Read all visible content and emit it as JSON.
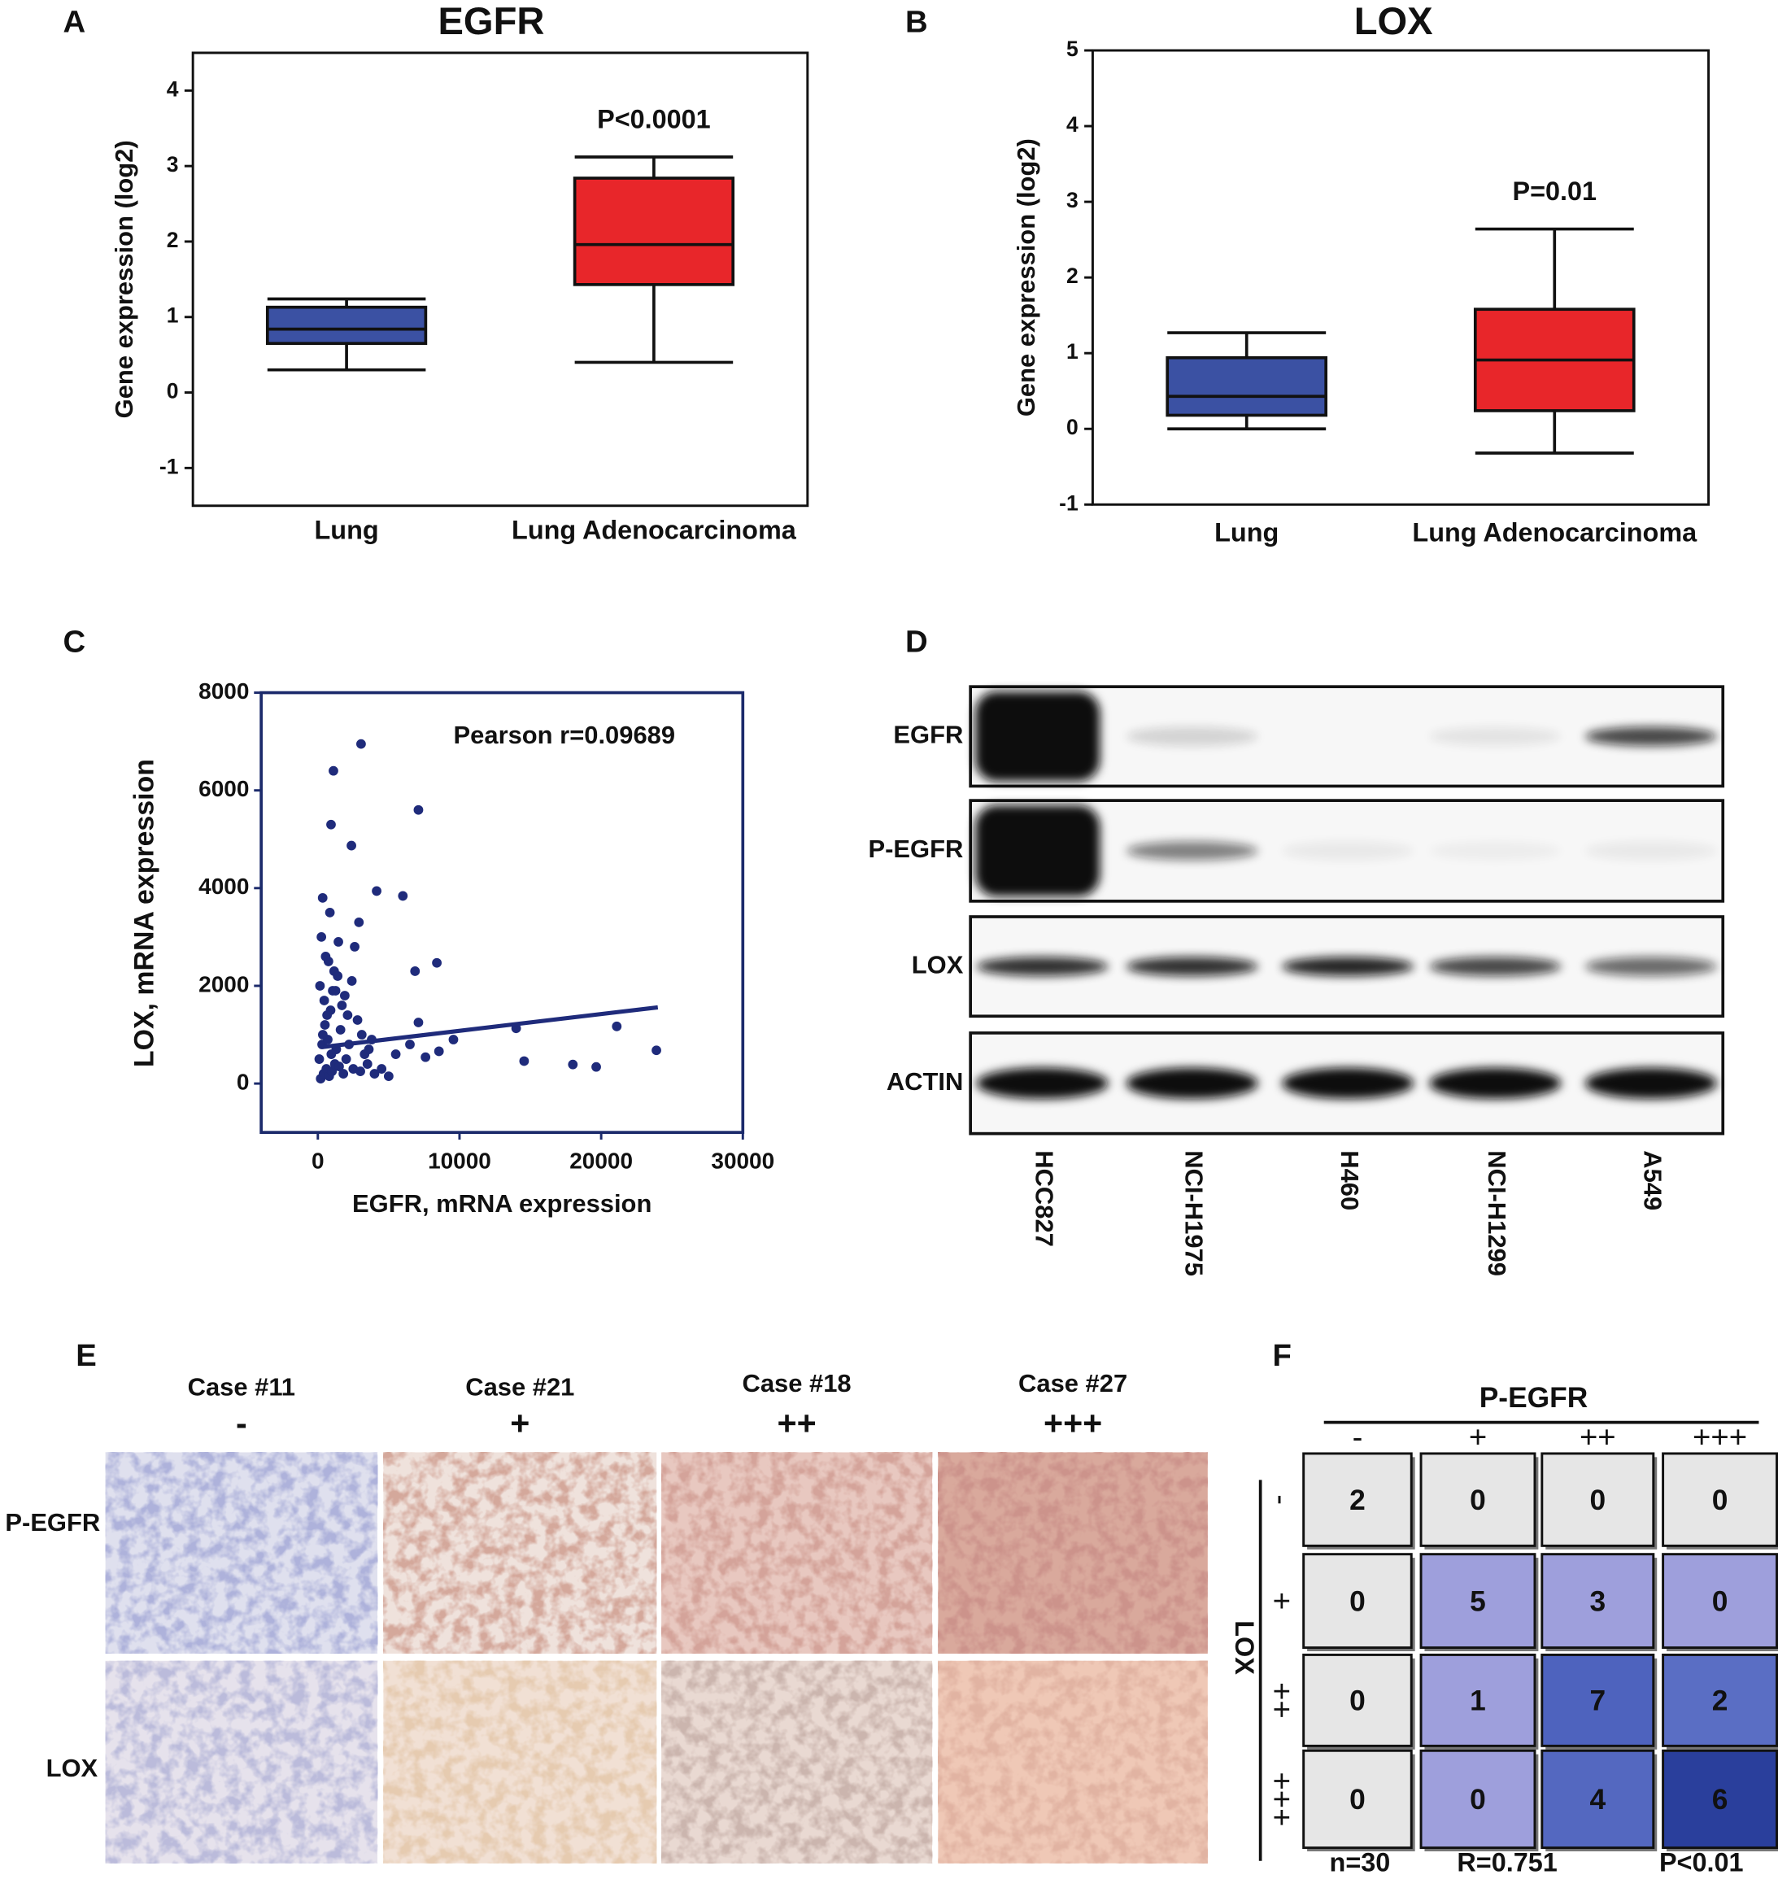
{
  "panels": [
    "A",
    "B",
    "C",
    "D",
    "E",
    "F"
  ],
  "chart_data": [
    {
      "type": "box",
      "title": "EGFR",
      "ylabel": "Gene expression (log2)",
      "categories": [
        "Lung",
        "Lung Adenocarcinoma"
      ],
      "min": [
        0.3,
        0.4
      ],
      "q1": [
        0.65,
        1.43
      ],
      "median": [
        0.84,
        1.96
      ],
      "q3": [
        1.13,
        2.84
      ],
      "max": [
        1.24,
        3.12
      ],
      "colors": [
        "#3b51a3",
        "#e8262a"
      ],
      "ylim": [
        -1.5,
        4.5
      ],
      "yticks": [
        -1,
        0,
        1,
        2,
        3,
        4
      ],
      "annotation": "P<0.0001"
    },
    {
      "type": "box",
      "title": "LOX",
      "ylabel": "Gene expression (log2)",
      "categories": [
        "Lung",
        "Lung Adenocarcinoma"
      ],
      "min": [
        0,
        -0.32
      ],
      "q1": [
        0.18,
        0.24
      ],
      "median": [
        0.43,
        0.91
      ],
      "q3": [
        0.94,
        1.58
      ],
      "max": [
        1.27,
        2.64
      ],
      "colors": [
        "#3b51a3",
        "#e8262a"
      ],
      "ylim": [
        -1,
        5
      ],
      "yticks": [
        -1,
        0,
        1,
        2,
        3,
        4,
        5
      ],
      "annotation": "P=0.01"
    },
    {
      "type": "scatter",
      "xlabel": "EGFR, mRNA expression",
      "ylabel": "LOX, mRNA expression",
      "annotation": "Pearson r=0.09689",
      "color": "#1f2b7b",
      "x": [
        3050,
        1100,
        7100,
        930,
        2370,
        4150,
        6000,
        340,
        6860,
        8400,
        14000,
        14560,
        18000,
        19650,
        21100,
        23900,
        7100,
        9570,
        8550,
        7600,
        200,
        400,
        600,
        800,
        1000,
        1200,
        1500,
        1800,
        2000,
        2500,
        3000,
        3500,
        4000,
        4500,
        5000,
        300,
        500,
        700,
        900,
        1300,
        1600,
        2200,
        2800,
        3300,
        3800,
        150,
        450,
        750,
        1050,
        1400,
        1700,
        2100,
        2600,
        3100,
        3600,
        250,
        550,
        850,
        1150,
        1450,
        1900,
        2400,
        2900,
        5500,
        6500,
        100,
        350,
        650,
        950,
        1250
      ],
      "y": [
        6950,
        6400,
        5600,
        5300,
        4870,
        3940,
        3840,
        3800,
        2300,
        2470,
        1130,
        460,
        390,
        340,
        1170,
        680,
        1250,
        900,
        660,
        540,
        100,
        200,
        300,
        150,
        250,
        400,
        350,
        200,
        500,
        300,
        250,
        400,
        200,
        300,
        150,
        800,
        1200,
        900,
        1500,
        700,
        1100,
        800,
        1300,
        600,
        900,
        2000,
        1700,
        2500,
        1900,
        2200,
        1600,
        1400,
        2800,
        1000,
        700,
        3000,
        2600,
        3500,
        2300,
        2900,
        1800,
        2100,
        3300,
        600,
        800,
        500,
        1000,
        1400,
        600,
        1900
      ],
      "fit": {
        "x": [
          400,
          24000
        ],
        "y": [
          750,
          1560
        ]
      },
      "xlim": [
        -4000,
        30000
      ],
      "ylim": [
        -1000,
        8000
      ],
      "xticks": [
        0,
        10000,
        20000,
        30000
      ],
      "yticks": [
        0,
        2000,
        4000,
        6000,
        8000
      ]
    },
    {
      "type": "heatmap",
      "xlabel": "P-EGFR",
      "ylabel": "LOX",
      "x_categories": [
        "-",
        "+",
        "++",
        "+++"
      ],
      "y_categories": [
        "-",
        "+",
        "++",
        "+++"
      ],
      "values": [
        [
          2,
          0,
          0,
          0
        ],
        [
          0,
          5,
          3,
          0
        ],
        [
          0,
          1,
          7,
          2
        ],
        [
          0,
          0,
          4,
          6
        ]
      ],
      "colors": [
        [
          "#e6e6e6",
          "#e6e6e6",
          "#e6e6e6",
          "#e6e6e6"
        ],
        [
          "#e6e6e6",
          "#9e9fdc",
          "#9e9fdc",
          "#9e9fdc"
        ],
        [
          "#e6e6e6",
          "#9e9fdc",
          "#4e63be",
          "#5a6ec4"
        ],
        [
          "#e6e6e6",
          "#9e9fdc",
          "#5468c0",
          "#2a3f9c"
        ]
      ],
      "annotations": [
        "n=30",
        "R=0.751",
        "P<0.01"
      ]
    }
  ],
  "blot": {
    "rows": [
      "EGFR",
      "P-EGFR",
      "LOX",
      "ACTIN"
    ],
    "lanes": [
      "HCC827",
      "NCI-H1975",
      "H460",
      "NCI-H1299",
      "A549"
    ]
  },
  "ihc": {
    "cases": [
      "Case #11",
      "Case #21",
      "Case #18",
      "Case #27"
    ],
    "grades": [
      "-",
      "+",
      "++",
      "+++"
    ],
    "rows": [
      "P-EGFR",
      "LOX"
    ]
  }
}
